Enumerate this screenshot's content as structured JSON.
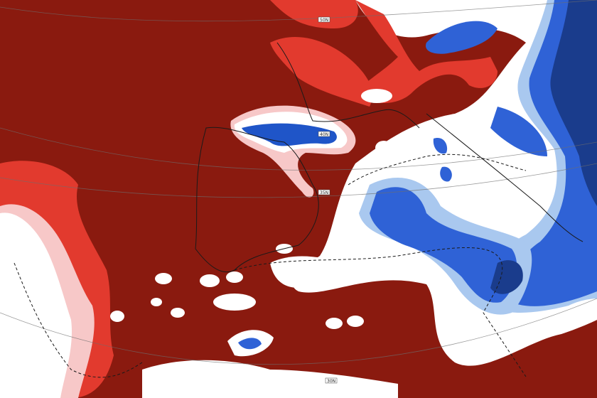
{
  "map": {
    "grid_labels": [
      "50N",
      "40N",
      "35N",
      "30N"
    ]
  }
}
